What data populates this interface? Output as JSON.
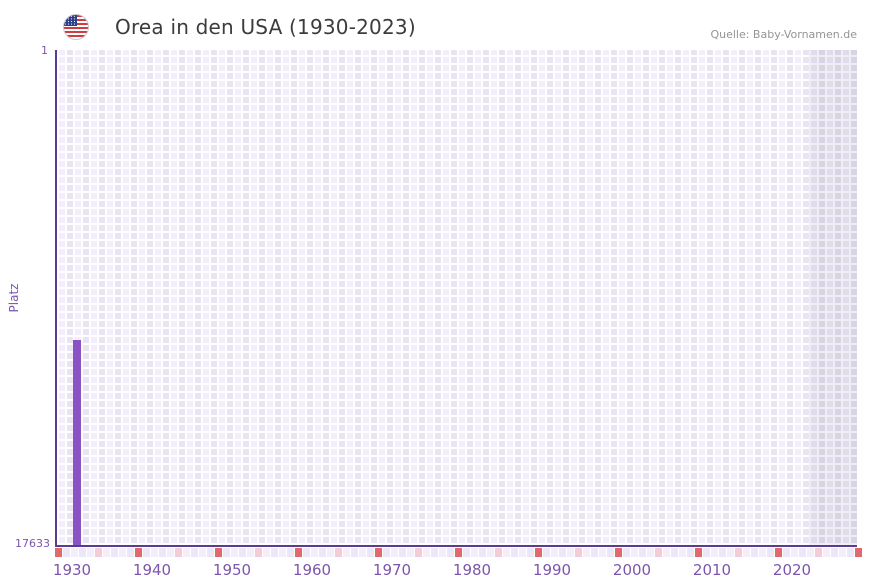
{
  "header": {
    "title": "Orea in den USA (1930-2023)",
    "source": "Quelle: Baby-Vornamen.de",
    "flag_icon": "us-flag-icon"
  },
  "chart_data": {
    "type": "bar",
    "title": "Orea in den USA (1930-2023)",
    "ylabel": "Platz",
    "y_axis": {
      "top_tick_label": "1",
      "bottom_tick_label": "17633",
      "min": 1,
      "max": 17633,
      "inverted": true,
      "grid": true
    },
    "x_axis": {
      "data_start_year": 1930,
      "data_end_year": 2023,
      "grid_end_year": 2030,
      "tick_labels": [
        "1930",
        "1940",
        "1950",
        "1960",
        "1970",
        "1980",
        "1990",
        "2000",
        "2010",
        "2020"
      ],
      "tick_years": [
        1930,
        1940,
        1950,
        1960,
        1970,
        1980,
        1990,
        2000,
        2010,
        2020
      ]
    },
    "series": [
      {
        "name": "Orea",
        "points": [
          {
            "year": 1932,
            "rank": 10330
          }
        ]
      }
    ],
    "future_band": {
      "from_year": 2024,
      "note_color": "#dcd8e8"
    },
    "strip": {
      "decade_years": [
        1930,
        1940,
        1950,
        1960,
        1970,
        1980,
        1990,
        2000,
        2010,
        2020,
        2030
      ],
      "half_decade_years": [
        1935,
        1945,
        1955,
        1965,
        1975,
        1985,
        1995,
        2005,
        2015,
        2025
      ]
    },
    "colors": {
      "bar": "#8a52c4",
      "axis_line": "#5b3a92",
      "tick_text": "#7c55ae",
      "grid_cell": "#ece8f6",
      "future_cell": "#dcd8e8",
      "strip_decade": "#e0696e",
      "strip_half_decade": "#f2ccd6",
      "strip_cell_even": "#f3eefa",
      "strip_cell_odd": "#ece7f6",
      "title_text": "#3c3c3c",
      "source_text": "#979399"
    }
  }
}
